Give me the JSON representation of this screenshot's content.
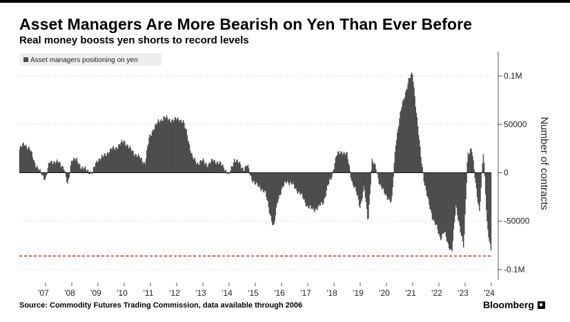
{
  "title": "Asset Managers Are More Bearish on Yen Than Ever Before",
  "subtitle": "Real money boosts yen shorts to record levels",
  "source": "Source: Commodity Futures Trading Commission, data available through 2006",
  "brand": "Bloomberg",
  "colors": {
    "bar": "#4d4d4d",
    "reference_line": "#d9302c",
    "grid": "#bdbdbd",
    "legend_bg": "#eeeeee"
  },
  "chart_data": {
    "type": "area",
    "legend": [
      "Asset managers positioning on yen"
    ],
    "ylabel": "Number of contracts",
    "ylim": [
      -105000,
      105000
    ],
    "y_ticks": [
      100000,
      50000,
      0,
      -50000,
      -100000
    ],
    "y_tick_labels": [
      "0.1M",
      "50000",
      "0",
      "-50000",
      "-0.1M"
    ],
    "x_range": [
      2006.0,
      2024.0
    ],
    "x_ticks": [
      2007,
      2008,
      2009,
      2010,
      2011,
      2012,
      2013,
      2014,
      2015,
      2016,
      2017,
      2018,
      2019,
      2020,
      2021,
      2022,
      2023,
      2024
    ],
    "x_tick_labels": [
      "'07",
      "'08",
      "'09",
      "'10",
      "'11",
      "'12",
      "'13",
      "'14",
      "'15",
      "'16",
      "'17",
      "'18",
      "'19",
      "'20",
      "'21",
      "'22",
      "'23",
      "'24"
    ],
    "grid": "horizontal dotted",
    "reference_line": {
      "y": -86000,
      "style": "dashed"
    },
    "series": [
      {
        "name": "Asset managers positioning on yen",
        "x": [
          2006.0,
          2006.2,
          2006.4,
          2006.6,
          2006.8,
          2007.0,
          2007.15,
          2007.3,
          2007.5,
          2007.7,
          2007.85,
          2008.0,
          2008.2,
          2008.4,
          2008.6,
          2008.8,
          2008.9,
          2009.0,
          2009.2,
          2009.4,
          2009.6,
          2009.8,
          2010.0,
          2010.2,
          2010.4,
          2010.6,
          2010.8,
          2010.95,
          2011.1,
          2011.3,
          2011.5,
          2011.7,
          2011.9,
          2012.1,
          2012.25,
          2012.4,
          2012.6,
          2012.8,
          2013.0,
          2013.2,
          2013.4,
          2013.6,
          2013.8,
          2014.0,
          2014.2,
          2014.4,
          2014.55,
          2014.7,
          2014.85,
          2015.0,
          2015.2,
          2015.4,
          2015.55,
          2015.7,
          2015.85,
          2016.0,
          2016.2,
          2016.4,
          2016.6,
          2016.8,
          2017.0,
          2017.2,
          2017.4,
          2017.6,
          2017.75,
          2017.9,
          2018.1,
          2018.3,
          2018.5,
          2018.7,
          2018.85,
          2019.0,
          2019.15,
          2019.3,
          2019.45,
          2019.6,
          2019.75,
          2019.9,
          2020.05,
          2020.2,
          2020.35,
          2020.5,
          2020.6,
          2020.7,
          2020.85,
          2021.0,
          2021.15,
          2021.3,
          2021.45,
          2021.6,
          2021.75,
          2021.9,
          2022.05,
          2022.2,
          2022.35,
          2022.5,
          2022.65,
          2022.8,
          2022.95,
          2023.1,
          2023.25,
          2023.4,
          2023.55,
          2023.7,
          2023.85,
          2024.0
        ],
        "values": [
          24000,
          30000,
          24000,
          10000,
          0,
          -6000,
          10000,
          12000,
          10000,
          6000,
          -14000,
          15000,
          12000,
          5000,
          2000,
          0,
          8000,
          14000,
          16000,
          22000,
          25000,
          28000,
          33000,
          25000,
          20000,
          15000,
          10000,
          35000,
          45000,
          52000,
          57000,
          55000,
          54000,
          56000,
          52000,
          40000,
          15000,
          10000,
          12000,
          8000,
          13000,
          10000,
          6000,
          -3000,
          14000,
          9000,
          4000,
          7000,
          -5000,
          -12000,
          -15000,
          -22000,
          -40000,
          -58000,
          -28000,
          -18000,
          -8000,
          -12000,
          -18000,
          -25000,
          -35000,
          -38000,
          -36000,
          -30000,
          -15000,
          -5000,
          18000,
          22000,
          18000,
          -10000,
          -20000,
          -35000,
          -15000,
          -50000,
          12000,
          5000,
          -12000,
          -20000,
          -25000,
          -32000,
          30000,
          55000,
          70000,
          80000,
          95000,
          103000,
          60000,
          20000,
          -10000,
          -30000,
          -45000,
          -55000,
          -68000,
          -60000,
          -75000,
          -80000,
          -35000,
          -55000,
          -78000,
          20000,
          25000,
          -10000,
          -40000,
          22000,
          -55000,
          -85000
        ]
      }
    ]
  }
}
